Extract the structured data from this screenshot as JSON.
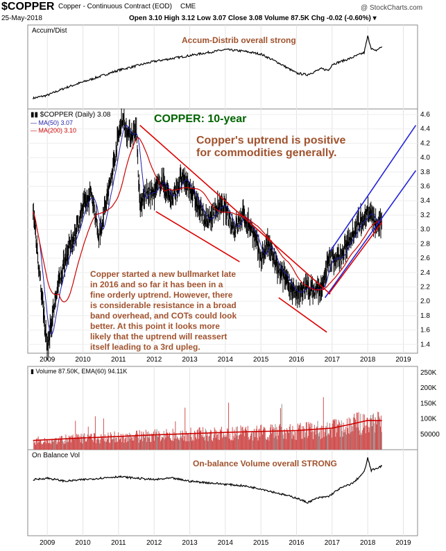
{
  "header": {
    "symbol": "$COPPER",
    "description": "Copper - Continuous Contract (EOD)",
    "exchange": "CME",
    "date": "25-May-2018",
    "watermark": "@ StockCharts.com",
    "quote": "Open 3.10  High 3.12  Low 3.07  Close 3.08  Volume 87.5K  Chg -0.02 (-0.60%) ▾"
  },
  "colors": {
    "frame": "#8a8a8a",
    "price_line": "#000000",
    "ma50": "#1f1faa",
    "ma200": "#cc0000",
    "trend_red": "#dd0000",
    "trend_blue": "#2222dd",
    "annotation_brown": "#a0522d",
    "annotation_green": "#006400",
    "volume_bar": "#d05050",
    "volume_ema": "#cc0000",
    "volume_gray": "#909090"
  },
  "years": [
    "2009",
    "2010",
    "2011",
    "2012",
    "2013",
    "2014",
    "2015",
    "2016",
    "2017",
    "2018",
    "2019"
  ],
  "accum_dist": {
    "label": "Accum/Dist",
    "annotation": "Accum-Distrib overall strong"
  },
  "price_panel": {
    "legend_main": "▮▮ $COPPER (Daily) 3.08",
    "legend_ma50": "— MA(50) 3.07",
    "legend_ma200": "— MA(200) 3.10",
    "title": "COPPER: 10-year",
    "headline_line1": "Copper's uptrend is positive",
    "headline_line2": "for commodities generally.",
    "commentary": [
      "Copper started a new bullmarket late",
      "in 2016 and so far it has been in a",
      "fine orderly uptrend. However, there",
      "is considerable resistance in a broad",
      "band overhead, and COTs could look",
      "better. At this point it looks more",
      "likely that the uptrend will reassert",
      "itself leading to a 3rd upleg."
    ]
  },
  "volume_panel": {
    "legend": "▮ Volume 87.50K, EMA(60) 94.11K"
  },
  "obv_panel": {
    "label": "On Balance Vol",
    "annotation": "On-balance Volume overall STRONG"
  },
  "chart_data": [
    {
      "type": "line",
      "panel": "Accum/Dist",
      "x": [
        2008.6,
        2009.0,
        2009.5,
        2010.0,
        2010.5,
        2011.0,
        2011.5,
        2012.0,
        2012.5,
        2013.0,
        2013.5,
        2014.0,
        2014.5,
        2015.0,
        2015.5,
        2016.0,
        2016.3,
        2016.7,
        2016.9,
        2017.0,
        2017.5,
        2017.9,
        2018.0,
        2018.1,
        2018.2,
        2018.4
      ],
      "values": [
        8,
        12,
        22,
        30,
        38,
        46,
        52,
        58,
        62,
        66,
        70,
        74,
        72,
        68,
        56,
        42,
        40,
        48,
        46,
        54,
        62,
        70,
        92,
        76,
        72,
        78
      ]
    },
    {
      "type": "line",
      "panel": "$COPPER (Daily)",
      "title": "COPPER: 10-year",
      "x": [
        2008.6,
        2008.8,
        2009.0,
        2009.25,
        2009.5,
        2009.75,
        2010.0,
        2010.25,
        2010.45,
        2010.75,
        2011.0,
        2011.1,
        2011.3,
        2011.5,
        2011.6,
        2011.75,
        2012.0,
        2012.2,
        2012.5,
        2012.75,
        2013.0,
        2013.25,
        2013.5,
        2013.75,
        2014.0,
        2014.25,
        2014.5,
        2014.75,
        2015.0,
        2015.2,
        2015.5,
        2015.75,
        2016.0,
        2016.2,
        2016.5,
        2016.75,
        2016.85,
        2017.0,
        2017.25,
        2017.5,
        2017.75,
        2018.0,
        2018.25,
        2018.4
      ],
      "values": [
        3.3,
        2.3,
        1.35,
        2.1,
        2.6,
        2.9,
        3.3,
        3.5,
        2.9,
        3.6,
        4.3,
        4.55,
        4.3,
        4.4,
        3.3,
        3.5,
        3.5,
        3.7,
        3.4,
        3.7,
        3.6,
        3.3,
        3.1,
        3.3,
        3.3,
        3.0,
        3.2,
        3.0,
        2.6,
        2.8,
        2.4,
        2.3,
        2.05,
        2.2,
        2.15,
        2.2,
        2.5,
        2.6,
        2.6,
        2.9,
        3.1,
        3.25,
        3.05,
        3.08
      ],
      "ylim": [
        1.2,
        4.6
      ],
      "yticks": [
        1.4,
        1.6,
        1.8,
        2.0,
        2.2,
        2.4,
        2.6,
        2.8,
        3.0,
        3.2,
        3.4,
        3.6,
        3.8,
        4.0,
        4.2,
        4.4,
        4.6
      ],
      "last_close": 3.08
    },
    {
      "type": "bar",
      "panel": "Volume",
      "legend": "Volume 87.50K, EMA(60) 94.11K",
      "yticks": [
        50000,
        100000,
        150000,
        200000,
        250000
      ],
      "ytick_labels": [
        "50000",
        "100K",
        "150K",
        "200K",
        "250K"
      ],
      "ylim": [
        0,
        270000
      ],
      "ema_x": [
        2008.6,
        2010.0,
        2012.0,
        2014.0,
        2016.0,
        2017.0,
        2017.5,
        2018.0,
        2018.4
      ],
      "ema_values": [
        30000,
        38000,
        48000,
        56000,
        62000,
        70000,
        82000,
        95000,
        94110
      ]
    },
    {
      "type": "line",
      "panel": "On Balance Vol",
      "x": [
        2008.6,
        2009.0,
        2009.5,
        2010.0,
        2010.5,
        2011.0,
        2011.5,
        2012.0,
        2012.5,
        2013.0,
        2013.5,
        2014.0,
        2014.5,
        2015.0,
        2015.5,
        2016.0,
        2016.3,
        2016.6,
        2016.9,
        2017.2,
        2017.6,
        2017.9,
        2018.0,
        2018.1,
        2018.3,
        2018.4
      ],
      "values": [
        68,
        70,
        66,
        68,
        70,
        72,
        70,
        68,
        70,
        66,
        64,
        62,
        60,
        56,
        50,
        44,
        38,
        44,
        46,
        56,
        64,
        78,
        96,
        80,
        84,
        86
      ]
    }
  ]
}
